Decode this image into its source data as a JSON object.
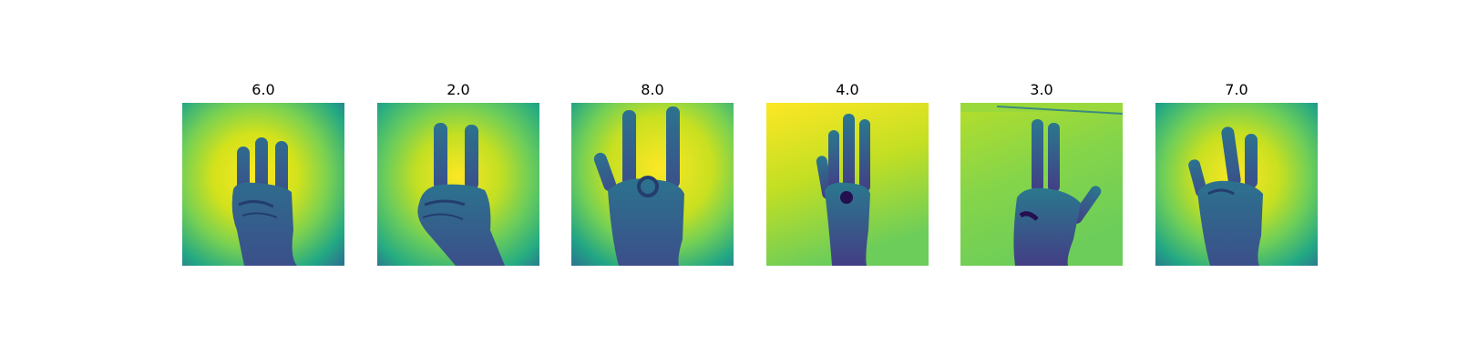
{
  "figure": {
    "panels": [
      {
        "title": "6.0",
        "fingers": 3,
        "background": "radial"
      },
      {
        "title": "2.0",
        "fingers": 2,
        "background": "radial"
      },
      {
        "title": "8.0",
        "fingers": 3,
        "background": "radial"
      },
      {
        "title": "4.0",
        "fingers": 4,
        "background": "flat"
      },
      {
        "title": "3.0",
        "fingers": 3,
        "background": "flat"
      },
      {
        "title": "7.0",
        "fingers": 3,
        "background": "radial"
      }
    ]
  },
  "colors": {
    "viridis_yellow": "#fde725",
    "viridis_green": "#5ec962",
    "viridis_teal": "#21918c",
    "viridis_blue": "#3b528b",
    "viridis_dark": "#440154"
  }
}
